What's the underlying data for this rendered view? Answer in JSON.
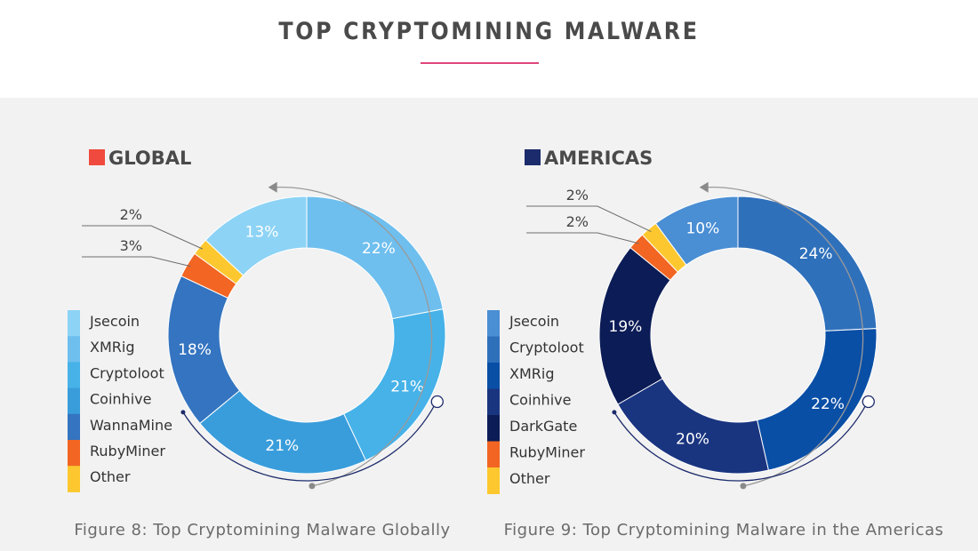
{
  "page_title": "TOP CRYPTOMINING MALWARE",
  "chart_data": [
    {
      "type": "pie",
      "title": "GLOBAL",
      "title_color": "#f04a3e",
      "caption": "Figure 8: Top Cryptomining Malware Globally",
      "legend": [
        "Jsecoin",
        "XMRig",
        "Cryptoloot",
        "Coinhive",
        "WannaMine",
        "RubyMiner",
        "Other"
      ],
      "legend_colors": [
        "#8dd3f5",
        "#6fbfee",
        "#46b2e8",
        "#3a9ddb",
        "#3474c0",
        "#f26522",
        "#fdc82f"
      ],
      "slices": [
        {
          "value": 22,
          "label": "22%",
          "color": "#6fbfee"
        },
        {
          "value": 21,
          "label": "21%",
          "color": "#46b2e8"
        },
        {
          "value": 21,
          "label": "21%",
          "color": "#3a9ddb"
        },
        {
          "value": 18,
          "label": "18%",
          "color": "#3474c0"
        },
        {
          "value": 3,
          "label": "3%",
          "color": "#f26522"
        },
        {
          "value": 2,
          "label": "2%",
          "color": "#fdc82f"
        },
        {
          "value": 13,
          "label": "13%",
          "color": "#8dd3f5"
        }
      ]
    },
    {
      "type": "pie",
      "title": "AMERICAS",
      "title_color": "#1c2b6b",
      "caption": "Figure 9: Top Cryptomining Malware in the Americas",
      "legend": [
        "Jsecoin",
        "Cryptoloot",
        "XMRig",
        "Coinhive",
        "DarkGate",
        "RubyMiner",
        "Other"
      ],
      "legend_colors": [
        "#4a8ed4",
        "#2f70bb",
        "#0a4fa6",
        "#1a3580",
        "#0c1c56",
        "#f26522",
        "#fdc82f"
      ],
      "slices": [
        {
          "value": 24,
          "label": "24%",
          "color": "#2f70bb"
        },
        {
          "value": 22,
          "label": "22%",
          "color": "#0a4fa6"
        },
        {
          "value": 20,
          "label": "20%",
          "color": "#1a3580"
        },
        {
          "value": 19,
          "label": "19%",
          "color": "#0c1c56"
        },
        {
          "value": 2,
          "label": "2%",
          "color": "#f26522"
        },
        {
          "value": 2,
          "label": "2%",
          "color": "#fdc82f"
        },
        {
          "value": 10,
          "label": "10%",
          "color": "#4a8ed4"
        }
      ]
    }
  ]
}
